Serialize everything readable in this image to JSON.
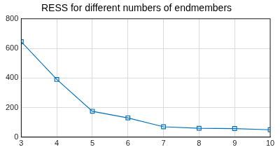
{
  "chart_data": {
    "type": "line",
    "title": "RESS for different numbers of endmembers",
    "x": [
      3,
      4,
      5,
      6,
      7,
      8,
      9,
      10
    ],
    "values": [
      645,
      390,
      175,
      130,
      70,
      60,
      58,
      50
    ],
    "color": "#0072bd",
    "marker": "square",
    "line_style": "solid",
    "xlim": [
      3,
      10
    ],
    "xticks": [
      3,
      4,
      5,
      6,
      7,
      8,
      9,
      10
    ],
    "ylim": [
      0,
      800
    ],
    "yticks": [
      0,
      200,
      400,
      600,
      800
    ],
    "grid": true
  }
}
